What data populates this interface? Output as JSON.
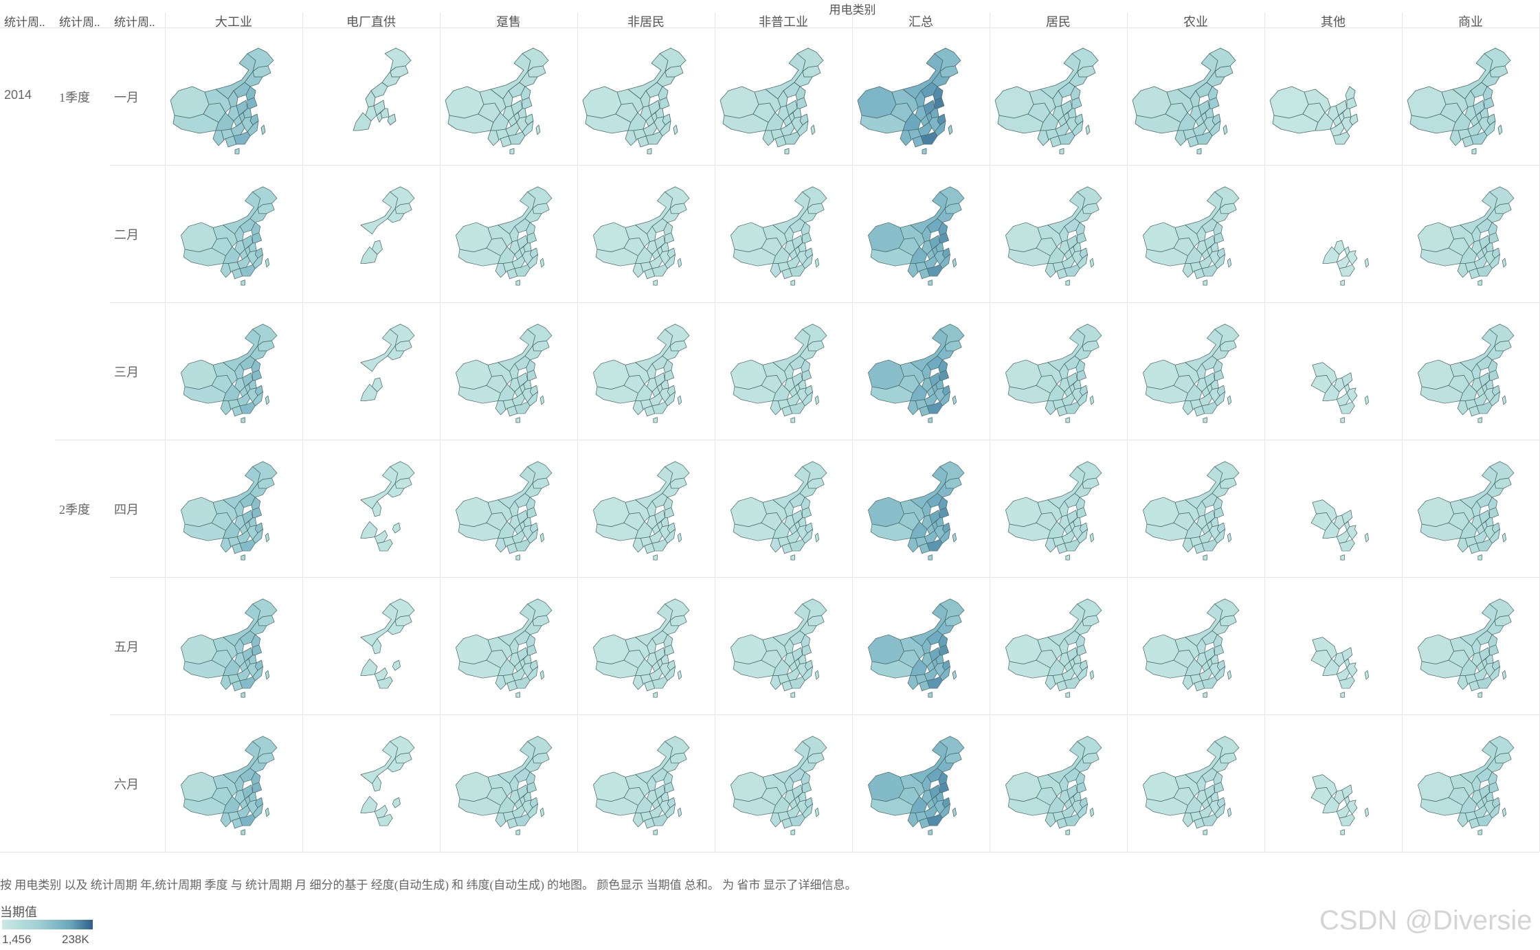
{
  "header": {
    "top_title": "用电类别",
    "row_headers": [
      "统计周..",
      "统计周..",
      "统计周.."
    ]
  },
  "columns": [
    "大工业",
    "电厂直供",
    "趸售",
    "非居民",
    "非普工业",
    "汇总",
    "居民",
    "农业",
    "其他",
    "商业"
  ],
  "year": "2014",
  "quarters": [
    {
      "label": "1季度",
      "months": [
        "一月",
        "二月",
        "三月"
      ]
    },
    {
      "label": "2季度",
      "months": [
        "四月",
        "五月",
        "六月"
      ]
    }
  ],
  "caption": "按 用电类别 以及 统计周期 年,统计周期 季度 与 统计周期 月 细分的基于 经度(自动生成) 和 纬度(自动生成) 的地图。 颜色显示 当期值 总和。 为 省市 显示了详细信息。",
  "legend": {
    "title": "当期值",
    "min": "1,456",
    "max": "238K",
    "colors": [
      "#c9e9e4",
      "#9fd0d4",
      "#6aa7be",
      "#2e5f8a"
    ]
  },
  "watermark": "CSDN @Diversie",
  "map_intensity": [
    [
      0.55,
      0.15,
      0.2,
      0.2,
      0.25,
      0.85,
      0.3,
      0.35,
      0.1,
      0.3
    ],
    [
      0.45,
      0.12,
      0.2,
      0.15,
      0.2,
      0.75,
      0.25,
      0.2,
      0.05,
      0.25
    ],
    [
      0.5,
      0.12,
      0.2,
      0.15,
      0.2,
      0.75,
      0.25,
      0.2,
      0.1,
      0.25
    ],
    [
      0.5,
      0.1,
      0.2,
      0.15,
      0.2,
      0.75,
      0.2,
      0.2,
      0.1,
      0.25
    ],
    [
      0.5,
      0.1,
      0.2,
      0.15,
      0.2,
      0.75,
      0.2,
      0.2,
      0.1,
      0.25
    ],
    [
      0.55,
      0.1,
      0.25,
      0.2,
      0.25,
      0.8,
      0.3,
      0.2,
      0.1,
      0.3
    ]
  ],
  "map_variants": [
    [
      0,
      1,
      0,
      0,
      0,
      0,
      0,
      0,
      2,
      0
    ],
    [
      3,
      4,
      3,
      3,
      3,
      3,
      3,
      3,
      5,
      3
    ],
    [
      3,
      4,
      3,
      3,
      3,
      3,
      3,
      3,
      6,
      3
    ],
    [
      3,
      7,
      3,
      3,
      3,
      3,
      3,
      3,
      6,
      3
    ],
    [
      3,
      7,
      3,
      3,
      3,
      3,
      3,
      3,
      6,
      3
    ],
    [
      3,
      7,
      3,
      3,
      3,
      3,
      3,
      3,
      6,
      3
    ]
  ]
}
